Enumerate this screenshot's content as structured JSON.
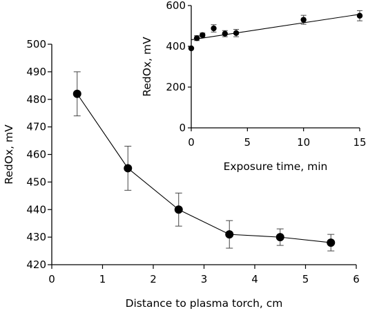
{
  "chart_data": [
    {
      "id": "main",
      "type": "line",
      "title": "",
      "xlabel": "Distance to plasma torch, cm",
      "ylabel": "RedOx, mV",
      "xlim": [
        0,
        6
      ],
      "ylim": [
        420,
        500
      ],
      "xticks": [
        0,
        1,
        2,
        3,
        4,
        5,
        6
      ],
      "yticks": [
        420,
        430,
        440,
        450,
        460,
        470,
        480,
        490,
        500
      ],
      "grid": false,
      "legend": "none",
      "series": [
        {
          "x": [
            0.5,
            1.5,
            2.5,
            3.5,
            4.5,
            5.5
          ],
          "y": [
            482,
            455,
            440,
            431,
            430,
            428
          ],
          "err": [
            8,
            8,
            6,
            5,
            3,
            3
          ]
        }
      ]
    },
    {
      "id": "inset",
      "type": "scatter",
      "title": "",
      "xlabel": "Exposure time, min",
      "ylabel": "RedOx, mV",
      "xlim": [
        0,
        15
      ],
      "ylim": [
        0,
        600
      ],
      "xticks": [
        0,
        5,
        10,
        15
      ],
      "yticks": [
        0,
        200,
        400,
        600
      ],
      "grid": false,
      "legend": "none",
      "series": [
        {
          "x": [
            0,
            0.5,
            1,
            2,
            3,
            4,
            10,
            15
          ],
          "y": [
            390,
            440,
            455,
            488,
            462,
            465,
            530,
            550
          ],
          "err": [
            0,
            12,
            10,
            18,
            15,
            18,
            22,
            25
          ]
        }
      ],
      "trendline": {
        "x": [
          0,
          15
        ],
        "y": [
          432,
          557
        ]
      }
    }
  ]
}
